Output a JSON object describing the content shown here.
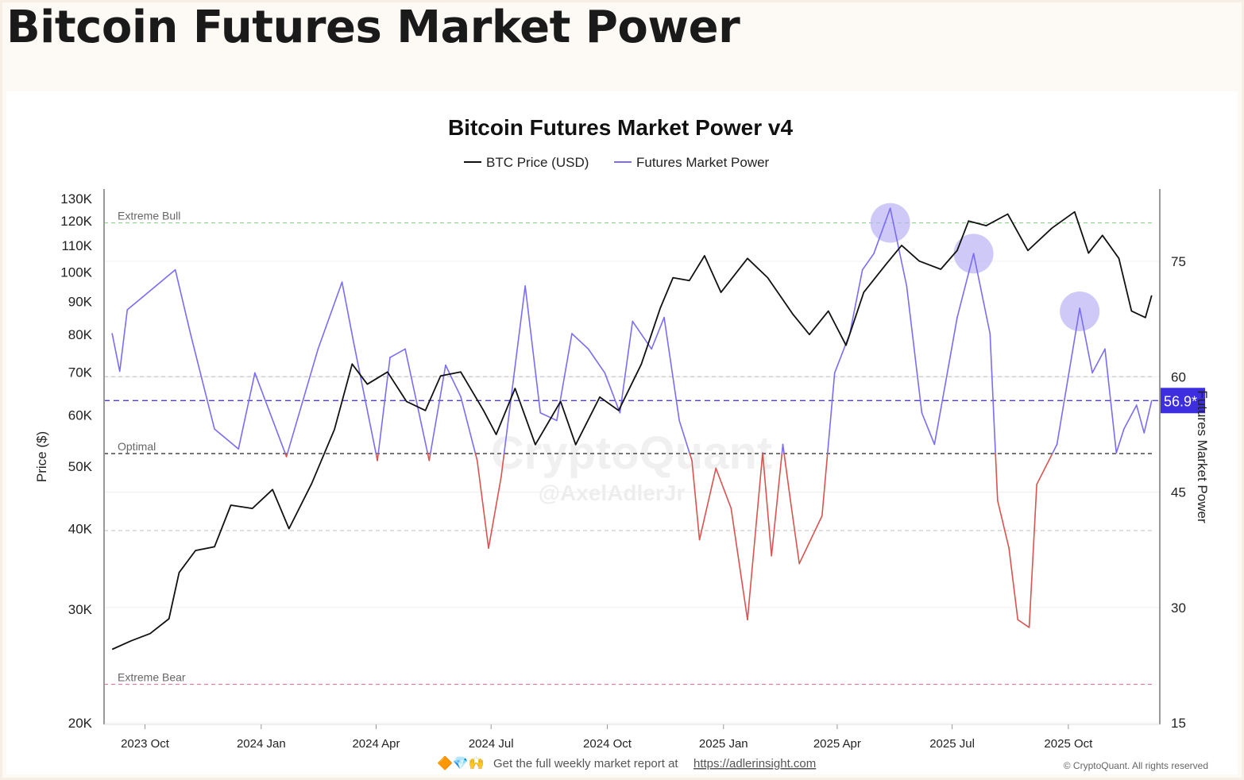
{
  "page_title": "Bitcoin Futures Market Power",
  "footer": {
    "emoji": "🔶💎🙌",
    "text": "Get the full weekly market report at ",
    "link": "https://adlerinsight.com",
    "copyright": "© CryptoQuant. All rights reserved"
  },
  "watermark": {
    "line1": "CryptoQuant",
    "line2": "@AxelAdlerJr"
  },
  "chart_data": {
    "type": "line",
    "title": "Bitcoin Futures Market Power v4",
    "legend": {
      "placement": "top-center",
      "entries": [
        "BTC Price (USD)",
        "Futures Market Power"
      ]
    },
    "colors": {
      "price": "#111111",
      "fmp_above": "#7b6cf6",
      "fmp_below": "#d9534f",
      "current_badge": "#3d2ee0",
      "highlight": "#b9b2f2",
      "extreme_bull": "#8fd18f",
      "extreme_bear": "#e07a9a",
      "optimal": "#555555",
      "current_line": "#4a3df0"
    },
    "ylabel_left": "Price ($)",
    "ylabel_right": "Futures Market Power",
    "y_left_scale": "log",
    "y_left_range": [
      20000,
      130000
    ],
    "y_left_ticks": [
      [
        "20K",
        20000
      ],
      [
        "30K",
        30000
      ],
      [
        "40K",
        40000
      ],
      [
        "50K",
        50000
      ],
      [
        "60K",
        60000
      ],
      [
        "70K",
        70000
      ],
      [
        "80K",
        80000
      ],
      [
        "90K",
        90000
      ],
      [
        "100K",
        100000
      ],
      [
        "110K",
        110000
      ],
      [
        "120K",
        120000
      ],
      [
        "130K",
        130000
      ]
    ],
    "y_right_range": [
      15,
      84
    ],
    "y_right_ticks": [
      15,
      30,
      45,
      60,
      75
    ],
    "x_range": [
      "2023-09-03",
      "2025-12-08"
    ],
    "x_ticks": [
      [
        "2023 Oct",
        "2023-10-01"
      ],
      [
        "2024 Jan",
        "2024-01-01"
      ],
      [
        "2024 Apr",
        "2024-04-01"
      ],
      [
        "2024 Jul",
        "2024-07-01"
      ],
      [
        "2024 Oct",
        "2024-10-01"
      ],
      [
        "2025 Jan",
        "2025-01-01"
      ],
      [
        "2025 Apr",
        "2025-04-01"
      ],
      [
        "2025 Jul",
        "2025-07-01"
      ],
      [
        "2025 Oct",
        "2025-10-01"
      ]
    ],
    "reference_lines": [
      {
        "label": "Extreme Bull",
        "value": 80,
        "color": "#8fd18f"
      },
      {
        "label": "",
        "value": 60,
        "color": "#c8c8c8"
      },
      {
        "label": "Optimal",
        "value": 50,
        "color": "#555555"
      },
      {
        "label": "",
        "value": 40,
        "color": "#c8c8c8"
      },
      {
        "label": "Extreme Bear",
        "value": 20,
        "color": "#e07a9a"
      }
    ],
    "current_value": {
      "value": 56.9,
      "label": "56.9*"
    },
    "highlights": [
      [
        "2025-05-13",
        80
      ],
      [
        "2025-07-18",
        76
      ],
      [
        "2025-10-10",
        68.5
      ]
    ],
    "series": [
      {
        "name": "BTC Price (USD)",
        "axis": "left",
        "points": [
          [
            "2023-09-05",
            26000
          ],
          [
            "2023-09-20",
            26800
          ],
          [
            "2023-10-05",
            27500
          ],
          [
            "2023-10-20",
            29000
          ],
          [
            "2023-10-28",
            34200
          ],
          [
            "2023-11-10",
            37000
          ],
          [
            "2023-11-25",
            37500
          ],
          [
            "2023-12-08",
            43500
          ],
          [
            "2023-12-25",
            43000
          ],
          [
            "2024-01-10",
            46000
          ],
          [
            "2024-01-23",
            40000
          ],
          [
            "2024-02-10",
            47000
          ],
          [
            "2024-02-28",
            57000
          ],
          [
            "2024-03-13",
            72000
          ],
          [
            "2024-03-25",
            67000
          ],
          [
            "2024-04-10",
            70000
          ],
          [
            "2024-04-25",
            63000
          ],
          [
            "2024-05-10",
            61000
          ],
          [
            "2024-05-22",
            69000
          ],
          [
            "2024-06-07",
            70000
          ],
          [
            "2024-06-25",
            61000
          ],
          [
            "2024-07-05",
            56000
          ],
          [
            "2024-07-20",
            66000
          ],
          [
            "2024-08-05",
            54000
          ],
          [
            "2024-08-25",
            63000
          ],
          [
            "2024-09-06",
            54000
          ],
          [
            "2024-09-25",
            64000
          ],
          [
            "2024-10-10",
            61000
          ],
          [
            "2024-10-28",
            72000
          ],
          [
            "2024-11-12",
            88000
          ],
          [
            "2024-11-22",
            98000
          ],
          [
            "2024-12-05",
            97000
          ],
          [
            "2024-12-17",
            106000
          ],
          [
            "2024-12-30",
            93000
          ],
          [
            "2025-01-20",
            105000
          ],
          [
            "2025-02-05",
            98000
          ],
          [
            "2025-02-25",
            86000
          ],
          [
            "2025-03-10",
            80000
          ],
          [
            "2025-03-25",
            87000
          ],
          [
            "2025-04-08",
            77000
          ],
          [
            "2025-04-22",
            93000
          ],
          [
            "2025-05-10",
            103000
          ],
          [
            "2025-05-22",
            110000
          ],
          [
            "2025-06-05",
            104000
          ],
          [
            "2025-06-22",
            101000
          ],
          [
            "2025-07-05",
            108000
          ],
          [
            "2025-07-14",
            120000
          ],
          [
            "2025-07-28",
            118000
          ],
          [
            "2025-08-14",
            123000
          ],
          [
            "2025-08-30",
            108000
          ],
          [
            "2025-09-18",
            117000
          ],
          [
            "2025-10-06",
            124000
          ],
          [
            "2025-10-17",
            107000
          ],
          [
            "2025-10-28",
            114000
          ],
          [
            "2025-11-10",
            105000
          ],
          [
            "2025-11-20",
            87000
          ],
          [
            "2025-12-01",
            85000
          ],
          [
            "2025-12-06",
            92000
          ]
        ]
      },
      {
        "name": "Futures Market Power",
        "axis": "right",
        "points": [
          [
            "2023-09-05",
            65.6
          ],
          [
            "2023-09-11",
            60.7
          ],
          [
            "2023-09-17",
            68.7
          ],
          [
            "2023-10-25",
            73.9
          ],
          [
            "2023-11-06",
            65.6
          ],
          [
            "2023-11-25",
            53.2
          ],
          [
            "2023-12-14",
            50.6
          ],
          [
            "2023-12-27",
            60.5
          ],
          [
            "2024-01-21",
            49.6
          ],
          [
            "2024-02-15",
            63.6
          ],
          [
            "2024-03-05",
            72.3
          ],
          [
            "2024-03-14",
            64.6
          ],
          [
            "2024-04-02",
            49.1
          ],
          [
            "2024-04-12",
            62.5
          ],
          [
            "2024-04-24",
            63.6
          ],
          [
            "2024-05-13",
            49.1
          ],
          [
            "2024-05-26",
            61.5
          ],
          [
            "2024-06-07",
            57.4
          ],
          [
            "2024-06-20",
            49.1
          ],
          [
            "2024-06-29",
            37.7
          ],
          [
            "2024-07-09",
            47.0
          ],
          [
            "2024-07-28",
            71.8
          ],
          [
            "2024-08-09",
            55.3
          ],
          [
            "2024-08-22",
            54.3
          ],
          [
            "2024-09-03",
            65.6
          ],
          [
            "2024-09-16",
            63.6
          ],
          [
            "2024-09-29",
            60.5
          ],
          [
            "2024-10-11",
            55.3
          ],
          [
            "2024-10-21",
            67.2
          ],
          [
            "2024-11-05",
            63.6
          ],
          [
            "2024-11-15",
            67.7
          ],
          [
            "2024-11-27",
            54.3
          ],
          [
            "2024-12-07",
            49.1
          ],
          [
            "2024-12-13",
            38.8
          ],
          [
            "2024-12-26",
            48.1
          ],
          [
            "2025-01-07",
            42.9
          ],
          [
            "2025-01-20",
            28.4
          ],
          [
            "2025-02-01",
            50.1
          ],
          [
            "2025-02-08",
            36.7
          ],
          [
            "2025-02-17",
            51.2
          ],
          [
            "2025-02-23",
            43.9
          ],
          [
            "2025-03-02",
            35.7
          ],
          [
            "2025-03-11",
            38.8
          ],
          [
            "2025-03-20",
            41.9
          ],
          [
            "2025-03-30",
            60.5
          ],
          [
            "2025-04-11",
            65.6
          ],
          [
            "2025-04-21",
            73.9
          ],
          [
            "2025-04-30",
            76.0
          ],
          [
            "2025-05-13",
            81.9
          ],
          [
            "2025-05-26",
            71.8
          ],
          [
            "2025-06-07",
            55.3
          ],
          [
            "2025-06-17",
            51.2
          ],
          [
            "2025-06-26",
            59.4
          ],
          [
            "2025-07-05",
            67.7
          ],
          [
            "2025-07-18",
            76.0
          ],
          [
            "2025-07-31",
            65.6
          ],
          [
            "2025-08-06",
            43.9
          ],
          [
            "2025-08-15",
            37.7
          ],
          [
            "2025-08-22",
            28.4
          ],
          [
            "2025-08-31",
            27.4
          ],
          [
            "2025-09-06",
            46.0
          ],
          [
            "2025-09-22",
            51.2
          ],
          [
            "2025-10-10",
            68.9
          ],
          [
            "2025-10-20",
            60.5
          ],
          [
            "2025-10-30",
            63.6
          ],
          [
            "2025-11-08",
            50.1
          ],
          [
            "2025-11-14",
            53.2
          ],
          [
            "2025-11-24",
            56.3
          ],
          [
            "2025-11-30",
            52.7
          ],
          [
            "2025-12-06",
            56.9
          ]
        ]
      }
    ]
  }
}
